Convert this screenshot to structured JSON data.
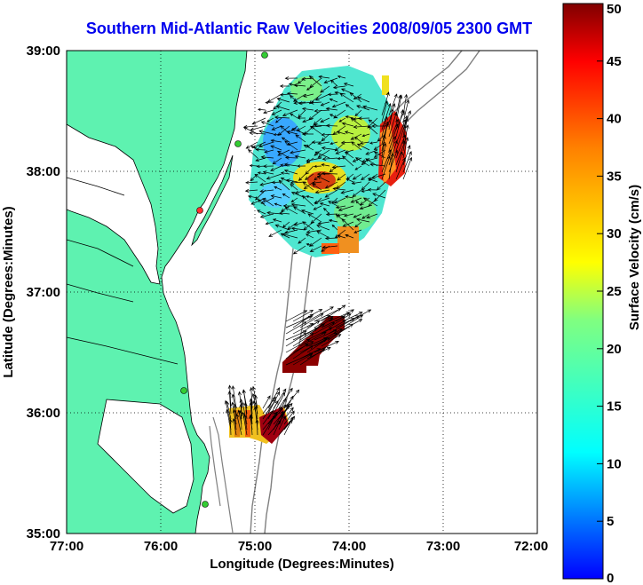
{
  "chart_data": {
    "type": "heatmap",
    "title": "Southern Mid-Atlantic Raw Velocities 2008/09/05 2300 GMT",
    "xlabel": "Longitude (Degrees:Minutes)",
    "ylabel": "Latitude (Degrees:Minutes)",
    "xlim": [
      -77,
      -72
    ],
    "ylim": [
      35,
      39
    ],
    "x_ticks": [
      "77:00",
      "76:00",
      "75:00",
      "74:00",
      "73:00",
      "72:00"
    ],
    "y_ticks": [
      "35:00",
      "36:00",
      "37:00",
      "38:00",
      "39:00"
    ],
    "grid": "dotted",
    "colorbar": {
      "label": "Surface Velocity (cm/s)",
      "min": 0,
      "max": 50,
      "ticks": [
        "0",
        "5",
        "10",
        "15",
        "20",
        "25",
        "30",
        "35",
        "40",
        "45",
        "50"
      ]
    },
    "regions": [
      {
        "lon": -74.3,
        "lat": 38.1,
        "speed_range": [
          5,
          50
        ],
        "typical_speed": 15
      },
      {
        "lon": -73.6,
        "lat": 38.1,
        "speed_range": [
          30,
          50
        ],
        "typical_speed": 40
      },
      {
        "lon": -74.1,
        "lat": 36.4,
        "speed_range": [
          45,
          50
        ],
        "typical_speed": 50
      },
      {
        "lon": -74.9,
        "lat": 35.95,
        "speed_range": [
          25,
          50
        ],
        "typical_speed": 35
      }
    ]
  }
}
